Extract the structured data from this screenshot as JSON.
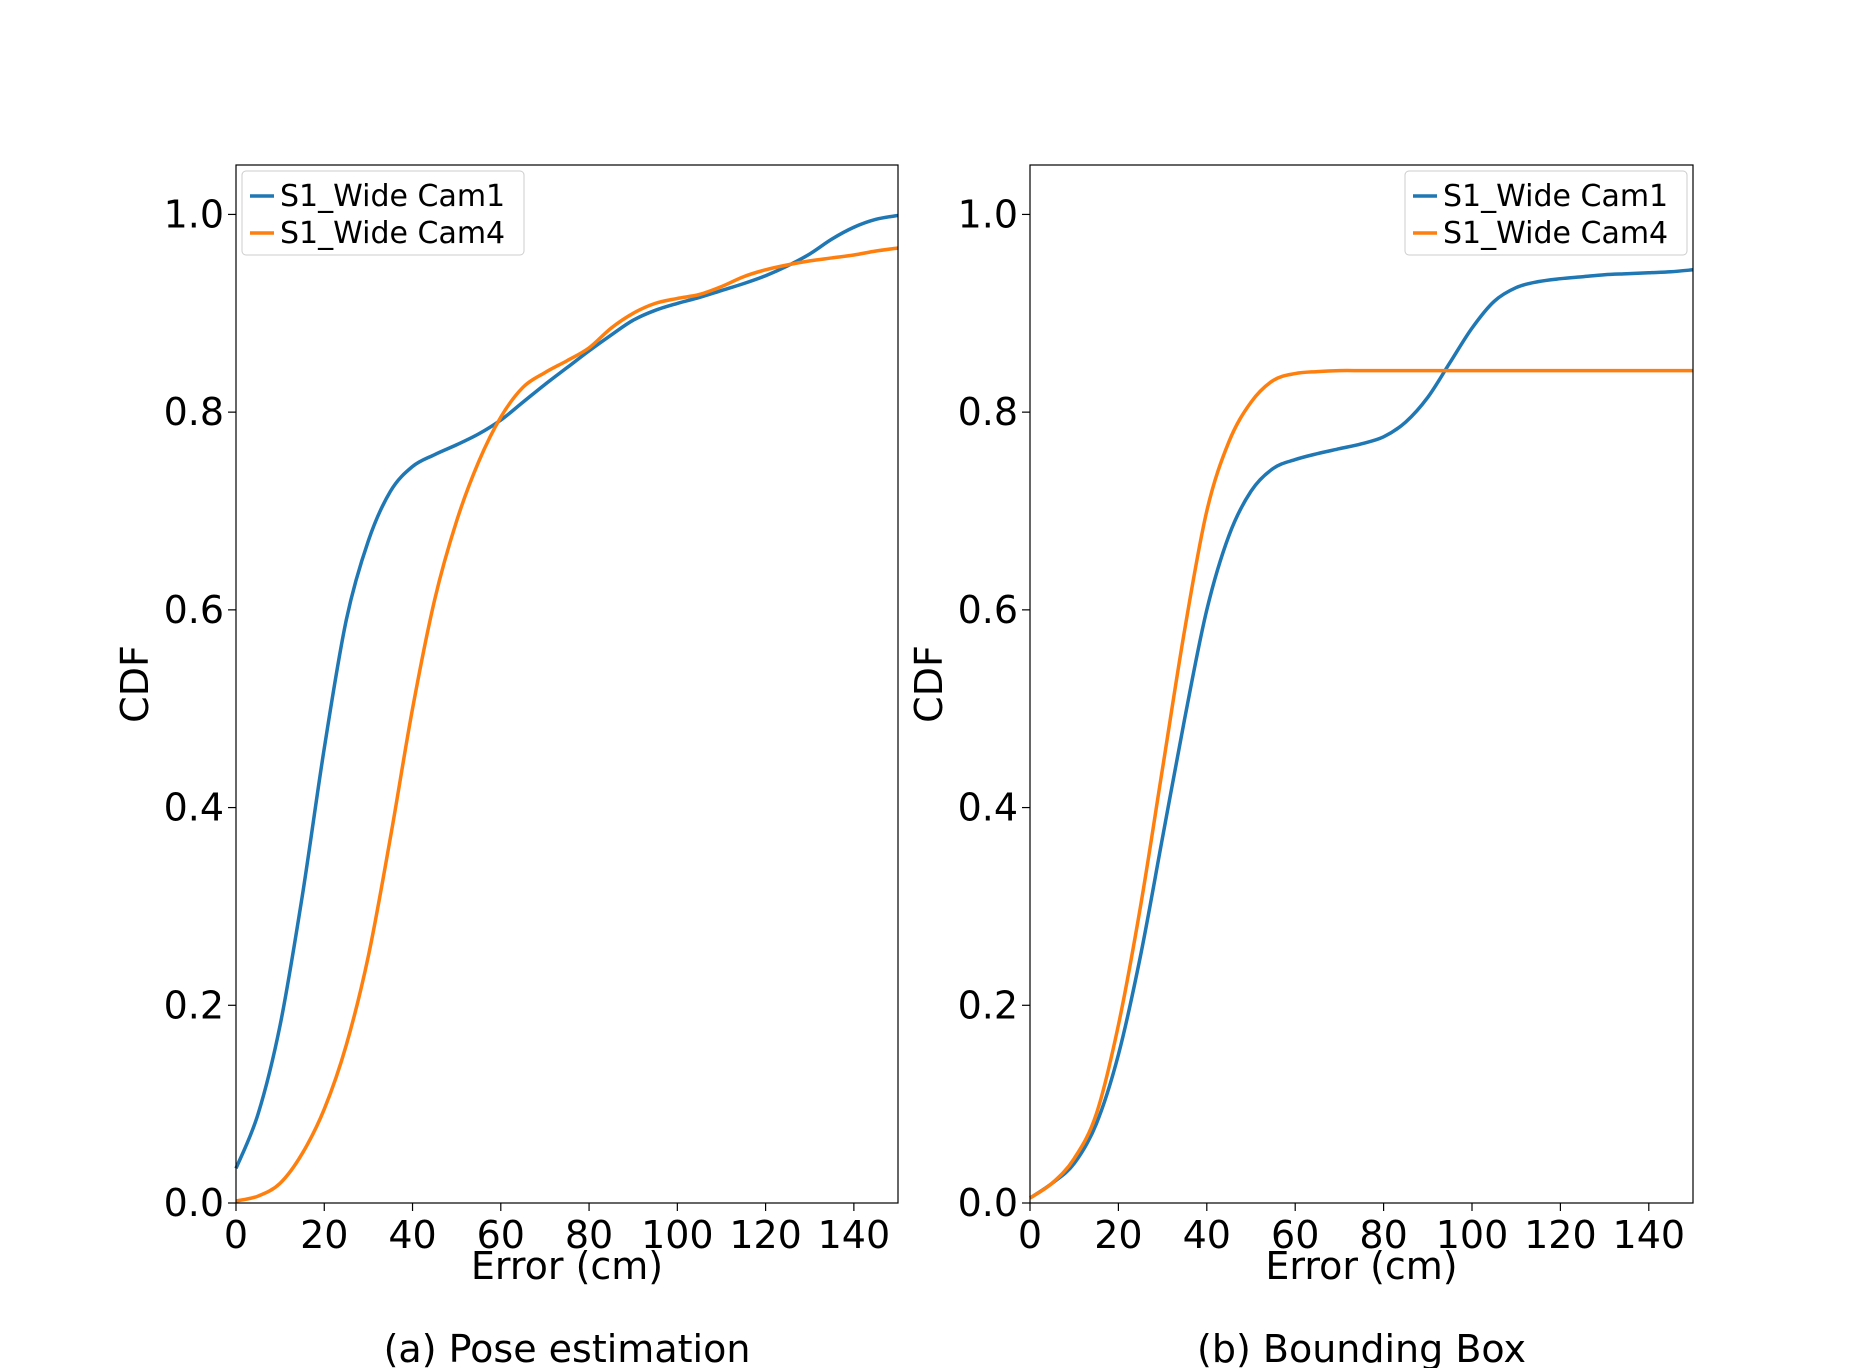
{
  "colors": {
    "series1": "#1f77b4",
    "series2": "#ff7f0e"
  },
  "chart_data": [
    {
      "type": "line",
      "caption": "(a) Pose estimation",
      "xlabel": "Error (cm)",
      "ylabel": "CDF",
      "xlim": [
        0,
        150
      ],
      "ylim": [
        0,
        1.05
      ],
      "xticks": [
        0,
        20,
        40,
        60,
        80,
        100,
        120,
        140
      ],
      "yticks": [
        "0.0",
        "0.2",
        "0.4",
        "0.6",
        "0.8",
        "1.0"
      ],
      "legend_position": "top-left",
      "grid": false,
      "series": [
        {
          "name": "S1_Wide Cam1",
          "x": [
            0,
            5,
            10,
            15,
            20,
            25,
            30,
            35,
            40,
            45,
            50,
            55,
            60,
            65,
            70,
            75,
            80,
            85,
            90,
            95,
            100,
            105,
            110,
            115,
            120,
            125,
            130,
            135,
            140,
            145,
            150
          ],
          "y": [
            0.035,
            0.09,
            0.18,
            0.31,
            0.46,
            0.59,
            0.67,
            0.72,
            0.745,
            0.757,
            0.767,
            0.778,
            0.792,
            0.81,
            0.828,
            0.845,
            0.862,
            0.878,
            0.893,
            0.903,
            0.91,
            0.916,
            0.923,
            0.93,
            0.938,
            0.948,
            0.96,
            0.975,
            0.987,
            0.995,
            0.999
          ]
        },
        {
          "name": "S1_Wide Cam4",
          "x": [
            0,
            5,
            10,
            15,
            20,
            25,
            30,
            35,
            40,
            45,
            50,
            55,
            60,
            65,
            70,
            75,
            80,
            85,
            90,
            95,
            100,
            105,
            110,
            115,
            120,
            125,
            130,
            135,
            140,
            145,
            150
          ],
          "y": [
            0.002,
            0.007,
            0.02,
            0.05,
            0.095,
            0.16,
            0.25,
            0.37,
            0.5,
            0.61,
            0.69,
            0.75,
            0.795,
            0.825,
            0.84,
            0.852,
            0.865,
            0.885,
            0.9,
            0.91,
            0.915,
            0.919,
            0.927,
            0.937,
            0.944,
            0.949,
            0.953,
            0.956,
            0.959,
            0.963,
            0.966
          ]
        }
      ]
    },
    {
      "type": "line",
      "caption": "(b) Bounding Box",
      "xlabel": "Error (cm)",
      "ylabel": "CDF",
      "xlim": [
        0,
        150
      ],
      "ylim": [
        0,
        1.05
      ],
      "xticks": [
        0,
        20,
        40,
        60,
        80,
        100,
        120,
        140
      ],
      "yticks": [
        "0.0",
        "0.2",
        "0.4",
        "0.6",
        "0.8",
        "1.0"
      ],
      "legend_position": "top-right",
      "grid": false,
      "series": [
        {
          "name": "S1_Wide Cam1",
          "x": [
            0,
            5,
            10,
            15,
            20,
            25,
            30,
            35,
            40,
            45,
            50,
            55,
            60,
            65,
            70,
            75,
            80,
            85,
            90,
            95,
            100,
            105,
            110,
            115,
            120,
            125,
            130,
            135,
            140,
            145,
            150
          ],
          "y": [
            0.005,
            0.02,
            0.04,
            0.08,
            0.15,
            0.25,
            0.37,
            0.49,
            0.6,
            0.675,
            0.72,
            0.743,
            0.752,
            0.758,
            0.763,
            0.768,
            0.775,
            0.79,
            0.815,
            0.85,
            0.885,
            0.912,
            0.926,
            0.932,
            0.935,
            0.937,
            0.939,
            0.94,
            0.941,
            0.942,
            0.944
          ]
        },
        {
          "name": "S1_Wide Cam4",
          "x": [
            0,
            5,
            10,
            15,
            20,
            25,
            30,
            35,
            40,
            45,
            50,
            55,
            60,
            65,
            70,
            75,
            80,
            85,
            90,
            95,
            100,
            105,
            110,
            115,
            120,
            125,
            130,
            135,
            140,
            145,
            150
          ],
          "y": [
            0.005,
            0.02,
            0.045,
            0.09,
            0.18,
            0.3,
            0.44,
            0.58,
            0.7,
            0.77,
            0.81,
            0.832,
            0.839,
            0.841,
            0.842,
            0.842,
            0.842,
            0.842,
            0.842,
            0.842,
            0.842,
            0.842,
            0.842,
            0.842,
            0.842,
            0.842,
            0.842,
            0.842,
            0.842,
            0.842,
            0.842
          ]
        }
      ]
    }
  ]
}
